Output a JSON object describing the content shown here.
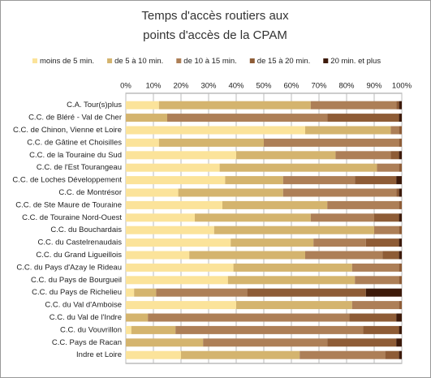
{
  "chart_data": {
    "type": "stacked-bar-horizontal",
    "title": [
      "Temps d'accès routiers aux",
      "points d'accès de la CPAM"
    ],
    "categories": [
      "C.A. Tour(s)plus",
      "C.C. de Bléré - Val de Cher",
      "C.C. de Chinon, Vienne et Loire",
      "C.C. de Gâtine et Choisilles",
      "C.C. de la Touraine du Sud",
      "C.C. de l'Est Tourangeau",
      "C.C. de Loches Développement",
      "C.C. de Montrésor",
      "C.C. de Ste Maure de Touraine",
      "C.C. de Touraine Nord-Ouest",
      "C.C. du Bouchardais",
      "C.C. du Castelrenaudais",
      "C.C. du Grand Ligueillois",
      "C.C. du Pays d'Azay le Rideau",
      "C.C. du Pays de Bourgueil",
      "C.C. du Pays de Richelieu",
      "C.C. du Val d'Amboise",
      "C.C. du Val de l'Indre",
      "C.C. du Vouvrillon",
      "C.C. Pays de Racan",
      "Indre et Loire"
    ],
    "series": [
      {
        "name": "moins de 5 min.",
        "color": "#fbe39a",
        "values": [
          12,
          0,
          65,
          12,
          40,
          34,
          36,
          19,
          35,
          25,
          32,
          38,
          23,
          39,
          37,
          3,
          40,
          0,
          2,
          0,
          20
        ]
      },
      {
        "name": "de 5 à 10 min.",
        "color": "#d4b46e",
        "values": [
          55,
          15,
          31,
          38,
          36,
          57,
          21,
          38,
          38,
          42,
          58,
          30,
          42,
          43,
          46,
          8,
          42,
          8,
          16,
          28,
          43
        ]
      },
      {
        "name": "de 10 à 15 min.",
        "color": "#ad7f57",
        "values": [
          31,
          58,
          3,
          49,
          20,
          8,
          26,
          41,
          26,
          23,
          9,
          19,
          28,
          17,
          16,
          33,
          17,
          73,
          68,
          45,
          31
        ]
      },
      {
        "name": "de 15 à 20 min.",
        "color": "#8e5c36",
        "values": [
          1,
          26,
          1,
          1,
          3,
          1,
          15,
          1,
          1,
          9,
          1,
          12,
          6,
          1,
          1,
          43,
          1,
          17,
          13,
          25,
          5
        ]
      },
      {
        "name": "20 min. et plus",
        "color": "#3d1a0a",
        "values": [
          1,
          1,
          0,
          0,
          1,
          0,
          2,
          1,
          0,
          1,
          0,
          1,
          1,
          0,
          0,
          13,
          0,
          2,
          1,
          2,
          1
        ]
      }
    ],
    "xlim": [
      0,
      100
    ],
    "xticks": [
      {
        "value": 0,
        "label": "0%"
      },
      {
        "value": 10,
        "label": "10%"
      },
      {
        "value": 20,
        "label": "20%"
      },
      {
        "value": 30,
        "label": "30%"
      },
      {
        "value": 40,
        "label": "40%"
      },
      {
        "value": 50,
        "label": "50%"
      },
      {
        "value": 60,
        "label": "60%"
      },
      {
        "value": 70,
        "label": "70%"
      },
      {
        "value": 80,
        "label": "80%"
      },
      {
        "value": 90,
        "label": "90%"
      },
      {
        "value": 100,
        "label": "100%"
      }
    ],
    "grid": true
  }
}
